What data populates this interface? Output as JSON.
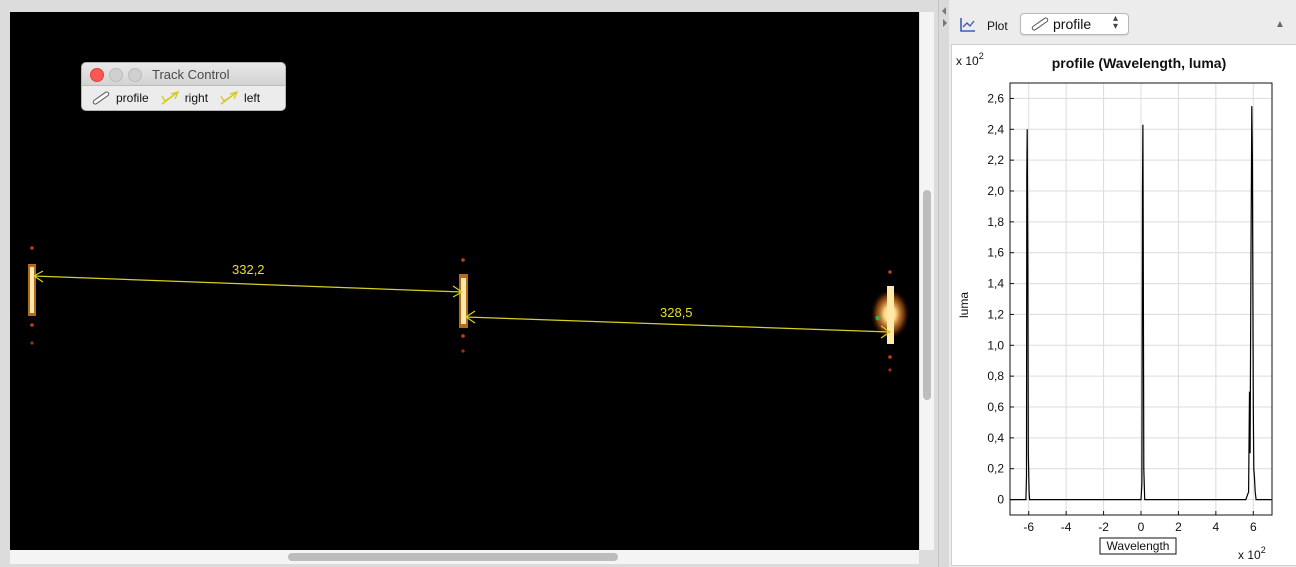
{
  "video": {
    "measurements": [
      {
        "label": "332,2"
      },
      {
        "label": "328,5"
      }
    ]
  },
  "track_control": {
    "title": "Track Control",
    "items": [
      {
        "label": "profile",
        "icon": "profile-icon"
      },
      {
        "label": "right",
        "icon": "track-icon"
      },
      {
        "label": "left",
        "icon": "track-icon"
      }
    ]
  },
  "plot_panel": {
    "label": "Plot",
    "selected_track": "profile",
    "icon": "plot-axes-icon"
  },
  "chart_data": {
    "type": "line",
    "title": "profile (Wavelength, luma)",
    "xlabel": "Wavelength",
    "ylabel": "luma",
    "x_multiplier": "x 10",
    "x_multiplier_exp": "2",
    "y_multiplier": "x 10",
    "y_multiplier_exp": "2",
    "xlim": [
      -7,
      7
    ],
    "ylim": [
      -0.1,
      2.7
    ],
    "xticks": [
      -6,
      -4,
      -2,
      0,
      2,
      4,
      6
    ],
    "xtick_labels": [
      "-6",
      "-4",
      "-2",
      "0",
      "2",
      "4",
      "6"
    ],
    "yticks": [
      0,
      0.2,
      0.4,
      0.6,
      0.8,
      1.0,
      1.2,
      1.4,
      1.6,
      1.8,
      2.0,
      2.2,
      2.4,
      2.6
    ],
    "ytick_labels": [
      "0",
      "0,2",
      "0,4",
      "0,6",
      "0,8",
      "1,0",
      "1,2",
      "1,4",
      "1,6",
      "1,8",
      "2,0",
      "2,2",
      "2,4",
      "2,6"
    ],
    "grid": true,
    "series": [
      {
        "x": [
          -7.0,
          -6.15,
          -6.12,
          -6.1,
          -6.08,
          -6.05,
          -6.02,
          -5.98,
          -5.95,
          0.0,
          0.05,
          0.08,
          0.1,
          0.12,
          0.15,
          0.2,
          5.6,
          5.75,
          5.8,
          5.83,
          5.85,
          5.88,
          5.92,
          5.95,
          6.0,
          6.03,
          6.06,
          6.1,
          6.15,
          6.25,
          7.0
        ],
        "y": [
          0.0,
          0.0,
          0.15,
          2.1,
          2.4,
          1.6,
          0.3,
          0.05,
          0.0,
          0.0,
          0.1,
          2.0,
          2.43,
          1.8,
          0.2,
          0.0,
          0.0,
          0.05,
          0.7,
          0.3,
          0.9,
          1.6,
          2.55,
          2.2,
          0.6,
          0.2,
          0.15,
          0.05,
          0.0,
          0.0,
          0.0
        ]
      }
    ]
  }
}
